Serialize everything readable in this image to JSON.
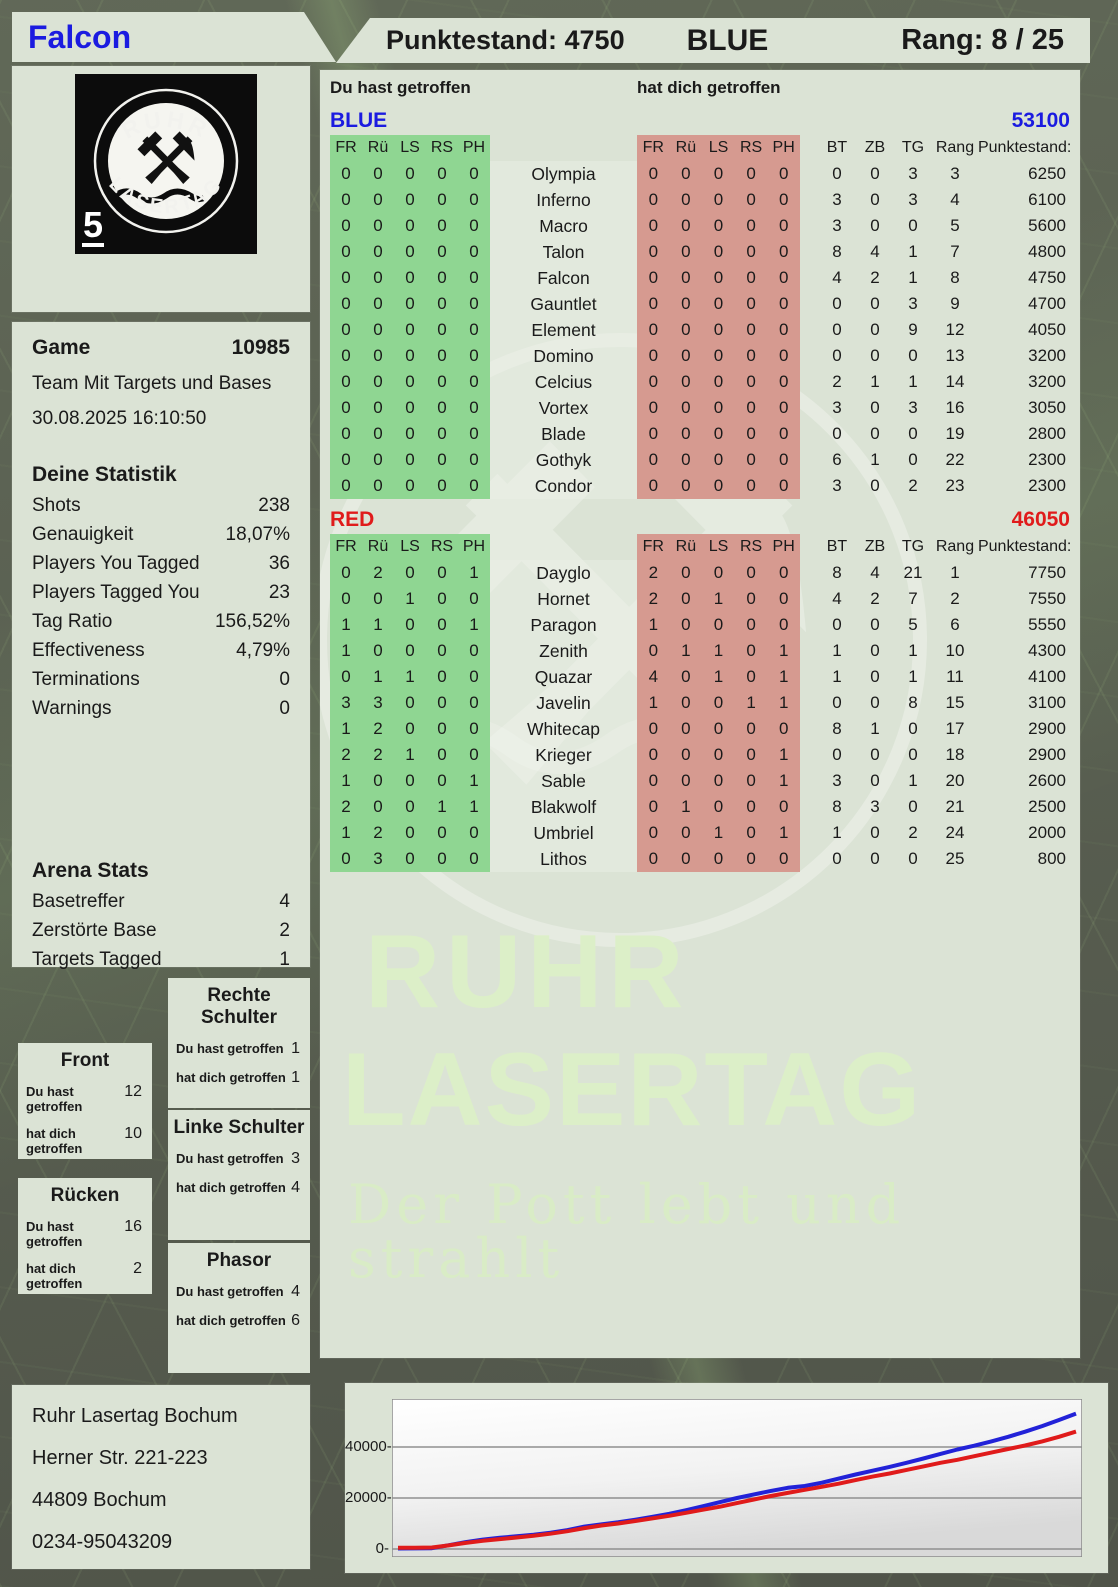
{
  "header": {
    "player_name": "Falcon",
    "points_label": "Punktestand: 4750",
    "team_label": "BLUE",
    "rank_label": "Rang: 8 / 25"
  },
  "logo": {
    "arc_top": "RUHR",
    "arc_bottom": "LASERTAG",
    "badge": "5"
  },
  "game_info": {
    "title": "Game",
    "number": "10985",
    "mode": "Team Mit Targets und Bases",
    "datetime": "30.08.2025 16:10:50"
  },
  "your_stats": {
    "title": "Deine Statistik",
    "rows": [
      {
        "label": "Shots",
        "value": "238"
      },
      {
        "label": "Genauigkeit",
        "value": "18,07%"
      },
      {
        "label": "Players You Tagged",
        "value": "36"
      },
      {
        "label": "Players Tagged You",
        "value": "23"
      },
      {
        "label": "Tag Ratio",
        "value": "156,52%"
      },
      {
        "label": "Effectiveness",
        "value": "4,79%"
      },
      {
        "label": "Terminations",
        "value": "0"
      },
      {
        "label": "Warnings",
        "value": "0"
      }
    ]
  },
  "arena_stats": {
    "title": "Arena Stats",
    "rows": [
      {
        "label": "Basetreffer",
        "value": "4"
      },
      {
        "label": "Zerstörte Base",
        "value": "2"
      },
      {
        "label": "Targets Tagged",
        "value": "1"
      }
    ]
  },
  "hit_labels": {
    "du": "Du hast getroffen",
    "dich": "hat dich getroffen"
  },
  "hit_zones": [
    {
      "title": "Front",
      "du": "12",
      "dich": "10"
    },
    {
      "title": "Rechte Schulter",
      "du": "1",
      "dich": "1"
    },
    {
      "title": "Linke Schulter",
      "du": "3",
      "dich": "4"
    },
    {
      "title": "Rücken",
      "du": "16",
      "dich": "2"
    },
    {
      "title": "Phasor",
      "du": "4",
      "dich": "6"
    }
  ],
  "contact": {
    "lines": [
      "Ruhr Lasertag Bochum",
      "Herner Str. 221-223",
      "44809 Bochum",
      "0234-95043209"
    ]
  },
  "watermark": {
    "line1": "RUHR",
    "line2": "LASERTAG",
    "tagline": "Der Pott lebt und strahlt"
  },
  "scoreboard": {
    "du_label": "Du hast getroffen",
    "dich_label": "hat dich getroffen",
    "zone_headers": [
      "FR",
      "Rü",
      "LS",
      "RS",
      "PH"
    ],
    "right_headers": [
      "BT",
      "ZB",
      "TG",
      "Rang"
    ],
    "punkte_header": "Punktestand:",
    "teams": [
      {
        "name": "BLUE",
        "total": "53100",
        "color": "#1b1be0",
        "rows": [
          {
            "name": "Olympia",
            "du": [
              0,
              0,
              0,
              0,
              0
            ],
            "dich": [
              0,
              0,
              0,
              0,
              0
            ],
            "bt": 0,
            "zb": 0,
            "tg": 3,
            "rang": 3,
            "punkte": 6250
          },
          {
            "name": "Inferno",
            "du": [
              0,
              0,
              0,
              0,
              0
            ],
            "dich": [
              0,
              0,
              0,
              0,
              0
            ],
            "bt": 3,
            "zb": 0,
            "tg": 3,
            "rang": 4,
            "punkte": 6100
          },
          {
            "name": "Macro",
            "du": [
              0,
              0,
              0,
              0,
              0
            ],
            "dich": [
              0,
              0,
              0,
              0,
              0
            ],
            "bt": 3,
            "zb": 0,
            "tg": 0,
            "rang": 5,
            "punkte": 5600
          },
          {
            "name": "Talon",
            "du": [
              0,
              0,
              0,
              0,
              0
            ],
            "dich": [
              0,
              0,
              0,
              0,
              0
            ],
            "bt": 8,
            "zb": 4,
            "tg": 1,
            "rang": 7,
            "punkte": 4800
          },
          {
            "name": "Falcon",
            "du": [
              0,
              0,
              0,
              0,
              0
            ],
            "dich": [
              0,
              0,
              0,
              0,
              0
            ],
            "bt": 4,
            "zb": 2,
            "tg": 1,
            "rang": 8,
            "punkte": 4750
          },
          {
            "name": "Gauntlet",
            "du": [
              0,
              0,
              0,
              0,
              0
            ],
            "dich": [
              0,
              0,
              0,
              0,
              0
            ],
            "bt": 0,
            "zb": 0,
            "tg": 3,
            "rang": 9,
            "punkte": 4700
          },
          {
            "name": "Element",
            "du": [
              0,
              0,
              0,
              0,
              0
            ],
            "dich": [
              0,
              0,
              0,
              0,
              0
            ],
            "bt": 0,
            "zb": 0,
            "tg": 9,
            "rang": 12,
            "punkte": 4050
          },
          {
            "name": "Domino",
            "du": [
              0,
              0,
              0,
              0,
              0
            ],
            "dich": [
              0,
              0,
              0,
              0,
              0
            ],
            "bt": 0,
            "zb": 0,
            "tg": 0,
            "rang": 13,
            "punkte": 3200
          },
          {
            "name": "Celcius",
            "du": [
              0,
              0,
              0,
              0,
              0
            ],
            "dich": [
              0,
              0,
              0,
              0,
              0
            ],
            "bt": 2,
            "zb": 1,
            "tg": 1,
            "rang": 14,
            "punkte": 3200
          },
          {
            "name": "Vortex",
            "du": [
              0,
              0,
              0,
              0,
              0
            ],
            "dich": [
              0,
              0,
              0,
              0,
              0
            ],
            "bt": 3,
            "zb": 0,
            "tg": 3,
            "rang": 16,
            "punkte": 3050
          },
          {
            "name": "Blade",
            "du": [
              0,
              0,
              0,
              0,
              0
            ],
            "dich": [
              0,
              0,
              0,
              0,
              0
            ],
            "bt": 0,
            "zb": 0,
            "tg": 0,
            "rang": 19,
            "punkte": 2800
          },
          {
            "name": "Gothyk",
            "du": [
              0,
              0,
              0,
              0,
              0
            ],
            "dich": [
              0,
              0,
              0,
              0,
              0
            ],
            "bt": 6,
            "zb": 1,
            "tg": 0,
            "rang": 22,
            "punkte": 2300
          },
          {
            "name": "Condor",
            "du": [
              0,
              0,
              0,
              0,
              0
            ],
            "dich": [
              0,
              0,
              0,
              0,
              0
            ],
            "bt": 3,
            "zb": 0,
            "tg": 2,
            "rang": 23,
            "punkte": 2300
          }
        ]
      },
      {
        "name": "RED",
        "total": "46050",
        "color": "#e01b1b",
        "rows": [
          {
            "name": "Dayglo",
            "du": [
              0,
              2,
              0,
              0,
              1
            ],
            "dich": [
              2,
              0,
              0,
              0,
              0
            ],
            "bt": 8,
            "zb": 4,
            "tg": 21,
            "rang": 1,
            "punkte": 7750
          },
          {
            "name": "Hornet",
            "du": [
              0,
              0,
              1,
              0,
              0
            ],
            "dich": [
              2,
              0,
              1,
              0,
              0
            ],
            "bt": 4,
            "zb": 2,
            "tg": 7,
            "rang": 2,
            "punkte": 7550
          },
          {
            "name": "Paragon",
            "du": [
              1,
              1,
              0,
              0,
              1
            ],
            "dich": [
              1,
              0,
              0,
              0,
              0
            ],
            "bt": 0,
            "zb": 0,
            "tg": 5,
            "rang": 6,
            "punkte": 5550
          },
          {
            "name": "Zenith",
            "du": [
              1,
              0,
              0,
              0,
              0
            ],
            "dich": [
              0,
              1,
              1,
              0,
              1
            ],
            "bt": 1,
            "zb": 0,
            "tg": 1,
            "rang": 10,
            "punkte": 4300
          },
          {
            "name": "Quazar",
            "du": [
              0,
              1,
              1,
              0,
              0
            ],
            "dich": [
              4,
              0,
              1,
              0,
              1
            ],
            "bt": 1,
            "zb": 0,
            "tg": 1,
            "rang": 11,
            "punkte": 4100
          },
          {
            "name": "Javelin",
            "du": [
              3,
              3,
              0,
              0,
              0
            ],
            "dich": [
              1,
              0,
              0,
              1,
              1
            ],
            "bt": 0,
            "zb": 0,
            "tg": 8,
            "rang": 15,
            "punkte": 3100
          },
          {
            "name": "Whitecap",
            "du": [
              1,
              2,
              0,
              0,
              0
            ],
            "dich": [
              0,
              0,
              0,
              0,
              0
            ],
            "bt": 8,
            "zb": 1,
            "tg": 0,
            "rang": 17,
            "punkte": 2900
          },
          {
            "name": "Krieger",
            "du": [
              2,
              2,
              1,
              0,
              0
            ],
            "dich": [
              0,
              0,
              0,
              0,
              1
            ],
            "bt": 0,
            "zb": 0,
            "tg": 0,
            "rang": 18,
            "punkte": 2900
          },
          {
            "name": "Sable",
            "du": [
              1,
              0,
              0,
              0,
              1
            ],
            "dich": [
              0,
              0,
              0,
              0,
              1
            ],
            "bt": 3,
            "zb": 0,
            "tg": 1,
            "rang": 20,
            "punkte": 2600
          },
          {
            "name": "Blakwolf",
            "du": [
              2,
              0,
              0,
              1,
              1
            ],
            "dich": [
              0,
              1,
              0,
              0,
              0
            ],
            "bt": 8,
            "zb": 3,
            "tg": 0,
            "rang": 21,
            "punkte": 2500
          },
          {
            "name": "Umbriel",
            "du": [
              1,
              2,
              0,
              0,
              0
            ],
            "dich": [
              0,
              0,
              1,
              0,
              1
            ],
            "bt": 1,
            "zb": 0,
            "tg": 2,
            "rang": 24,
            "punkte": 2000
          },
          {
            "name": "Lithos",
            "du": [
              0,
              3,
              0,
              0,
              0
            ],
            "dich": [
              0,
              0,
              0,
              0,
              0
            ],
            "bt": 0,
            "zb": 0,
            "tg": 0,
            "rang": 25,
            "punkte": 800
          }
        ]
      }
    ]
  },
  "chart_data": {
    "type": "line",
    "title": "",
    "xlabel": "",
    "ylabel": "",
    "ylim": [
      0,
      58000
    ],
    "grid": true,
    "legend_position": "none",
    "ytick_labels": [
      "0-",
      "20000-",
      "40000-"
    ],
    "yticks": [
      0,
      20000,
      40000
    ],
    "series": [
      {
        "name": "BLUE",
        "color": "#2222d8",
        "values": [
          200,
          250,
          300,
          1500,
          2700,
          3700,
          4400,
          5000,
          5600,
          6400,
          7400,
          8800,
          9700,
          10500,
          11500,
          12600,
          13800,
          15200,
          16800,
          18400,
          20000,
          21400,
          22800,
          24000,
          24700,
          26000,
          27600,
          29200,
          30700,
          32200,
          33800,
          35500,
          37300,
          39000,
          40500,
          42200,
          44000,
          46000,
          48200,
          50600,
          53100
        ]
      },
      {
        "name": "RED",
        "color": "#e01b1b",
        "values": [
          500,
          500,
          600,
          1400,
          2400,
          3200,
          3900,
          4500,
          5200,
          6000,
          7000,
          8200,
          9200,
          10000,
          11000,
          12000,
          13000,
          14200,
          15400,
          16600,
          18000,
          19400,
          20800,
          22000,
          23200,
          24400,
          25600,
          27000,
          28400,
          29600,
          31000,
          32400,
          33800,
          35000,
          36400,
          37800,
          39200,
          40600,
          42200,
          44000,
          46050
        ]
      }
    ]
  }
}
